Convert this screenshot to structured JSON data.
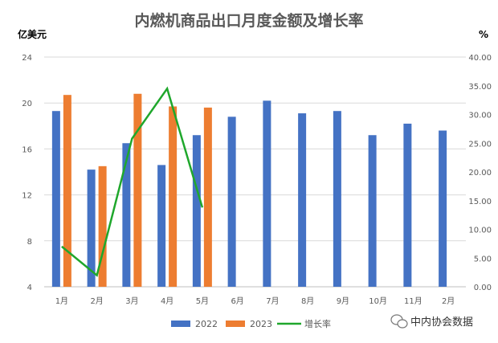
{
  "chart_data": {
    "type": "bar",
    "title": "内燃机商品出口月度金额及增长率",
    "ylabel_left": "亿美元",
    "ylabel_right": "%",
    "categories": [
      "1月",
      "2月",
      "3月",
      "4月",
      "5月",
      "6月",
      "7月",
      "8月",
      "9月",
      "10月",
      "11月",
      "2月"
    ],
    "ylim_left": [
      4,
      24
    ],
    "yticks_left": [
      "4",
      "8",
      "12",
      "16",
      "20",
      "24"
    ],
    "ylim_right": [
      0,
      40
    ],
    "yticks_right": [
      "0.00",
      "5.00",
      "10.00",
      "15.00",
      "20.00",
      "25.00",
      "30.00",
      "35.00",
      "40.00"
    ],
    "grid": true,
    "legend_position": "bottom",
    "series": [
      {
        "name": "2022",
        "type": "bar",
        "axis": "left",
        "color": "#4472C4",
        "values": [
          19.3,
          14.2,
          16.5,
          14.6,
          17.2,
          18.8,
          20.2,
          19.1,
          19.3,
          17.2,
          18.2,
          17.6
        ]
      },
      {
        "name": "2023",
        "type": "bar",
        "axis": "left",
        "color": "#ED7D31",
        "values": [
          20.7,
          14.5,
          20.8,
          19.7,
          19.6,
          null,
          null,
          null,
          null,
          null,
          null,
          null
        ]
      },
      {
        "name": "增长率",
        "type": "line",
        "axis": "right",
        "color": "#1FA72C",
        "values": [
          7.0,
          2.0,
          25.8,
          34.5,
          13.8,
          null,
          null,
          null,
          null,
          null,
          null,
          null
        ]
      }
    ]
  },
  "watermark": {
    "text": "中内协会数据",
    "icon": "wechat-icon"
  }
}
